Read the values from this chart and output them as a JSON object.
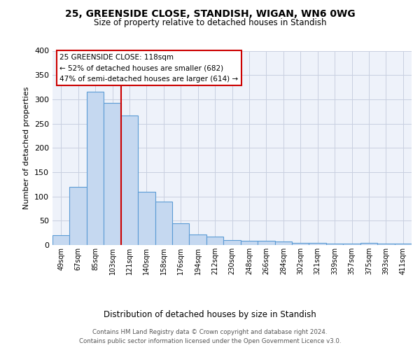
{
  "title": "25, GREENSIDE CLOSE, STANDISH, WIGAN, WN6 0WG",
  "subtitle": "Size of property relative to detached houses in Standish",
  "xlabel": "Distribution of detached houses by size in Standish",
  "ylabel": "Number of detached properties",
  "footer_line1": "Contains HM Land Registry data © Crown copyright and database right 2024.",
  "footer_line2": "Contains public sector information licensed under the Open Government Licence v3.0.",
  "bin_labels": [
    "49sqm",
    "67sqm",
    "85sqm",
    "103sqm",
    "121sqm",
    "140sqm",
    "158sqm",
    "176sqm",
    "194sqm",
    "212sqm",
    "230sqm",
    "248sqm",
    "266sqm",
    "284sqm",
    "302sqm",
    "321sqm",
    "339sqm",
    "357sqm",
    "375sqm",
    "393sqm",
    "411sqm"
  ],
  "bar_values": [
    20,
    120,
    315,
    293,
    267,
    110,
    90,
    44,
    22,
    18,
    10,
    8,
    8,
    7,
    5,
    5,
    3,
    3,
    5,
    3,
    3
  ],
  "bar_color": "#c5d8f0",
  "bar_edge_color": "#5b9bd5",
  "bg_color": "#eef2fa",
  "grid_color": "#c8cfe0",
  "property_line_color": "#cc0000",
  "annotation_title": "25 GREENSIDE CLOSE: 118sqm",
  "annotation_line1": "← 52% of detached houses are smaller (682)",
  "annotation_line2": "47% of semi-detached houses are larger (614) →",
  "annotation_box_color": "#ffffff",
  "annotation_border_color": "#cc0000",
  "ylim": [
    0,
    400
  ],
  "yticks": [
    0,
    50,
    100,
    150,
    200,
    250,
    300,
    350,
    400
  ]
}
